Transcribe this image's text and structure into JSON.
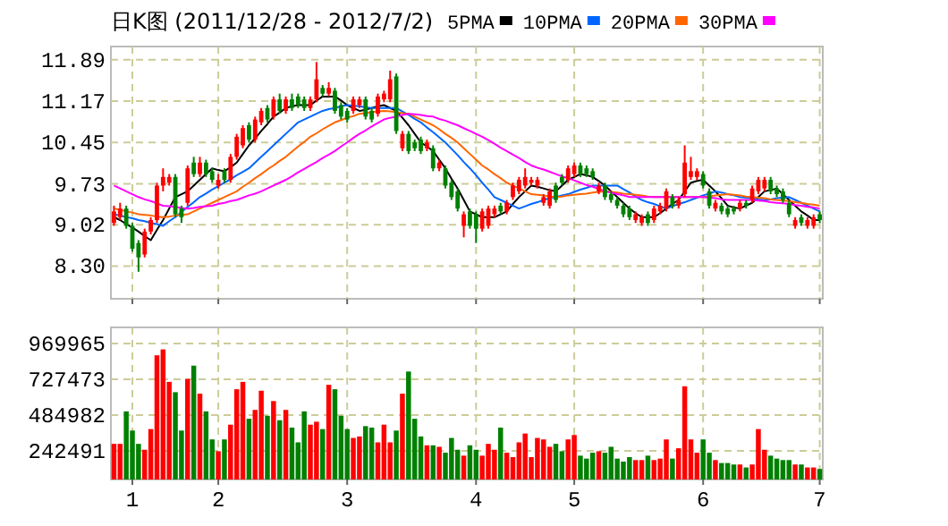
{
  "chart_data": [
    {
      "type": "candlestick",
      "title": "日K图 (2011/12/28 - 2012/7/2)",
      "categories": [
        null,
        null,
        null,
        "1",
        null,
        null,
        null,
        null,
        null,
        null,
        null,
        null,
        null,
        null,
        null,
        null,
        null,
        "2",
        null,
        null,
        null,
        null,
        null,
        null,
        null,
        null,
        null,
        null,
        null,
        null,
        null,
        null,
        null,
        null,
        null,
        null,
        null,
        null,
        "3",
        null,
        null,
        null,
        null,
        null,
        null,
        null,
        null,
        null,
        null,
        null,
        null,
        null,
        null,
        null,
        null,
        null,
        null,
        null,
        null,
        "4",
        null,
        null,
        null,
        null,
        null,
        null,
        null,
        null,
        null,
        null,
        null,
        null,
        null,
        null,
        null,
        "5",
        null,
        null,
        null,
        null,
        null,
        null,
        null,
        null,
        null,
        null,
        null,
        null,
        null,
        null,
        null,
        null,
        null,
        null,
        null,
        null,
        "6",
        null,
        null,
        null,
        null,
        null,
        null,
        null,
        null,
        null,
        null,
        null,
        null,
        null,
        null,
        null,
        null,
        null,
        null,
        "7"
      ],
      "ohlc": [
        [
          9.05,
          9.35,
          9.0,
          9.25
        ],
        [
          9.15,
          9.4,
          9.1,
          9.3
        ],
        [
          9.3,
          9.35,
          8.95,
          9.0
        ],
        [
          9.0,
          9.05,
          8.55,
          8.6
        ],
        [
          8.7,
          8.75,
          8.2,
          8.45
        ],
        [
          8.5,
          8.95,
          8.45,
          8.9
        ],
        [
          8.9,
          9.15,
          8.85,
          9.1
        ],
        [
          9.1,
          9.75,
          9.05,
          9.7
        ],
        [
          9.7,
          10.0,
          9.6,
          9.85
        ],
        [
          9.75,
          9.9,
          9.7,
          9.85
        ],
        [
          9.85,
          9.9,
          9.15,
          9.2
        ],
        [
          9.3,
          9.35,
          9.05,
          9.15
        ],
        [
          9.4,
          10.05,
          9.35,
          10.0
        ],
        [
          10.1,
          10.2,
          9.85,
          9.9
        ],
        [
          9.9,
          10.2,
          9.85,
          10.1
        ],
        [
          10.1,
          10.15,
          9.85,
          9.9
        ],
        [
          9.95,
          10.0,
          9.75,
          9.8
        ],
        [
          9.7,
          9.9,
          9.65,
          9.8
        ],
        [
          9.95,
          10.0,
          9.75,
          9.8
        ],
        [
          9.8,
          10.25,
          9.75,
          10.2
        ],
        [
          10.2,
          10.6,
          10.15,
          10.55
        ],
        [
          10.4,
          10.75,
          10.35,
          10.7
        ],
        [
          10.75,
          10.8,
          10.45,
          10.5
        ],
        [
          10.5,
          10.9,
          10.45,
          10.85
        ],
        [
          10.8,
          11.05,
          10.75,
          11.0
        ],
        [
          11.05,
          11.1,
          10.8,
          10.85
        ],
        [
          10.9,
          11.25,
          10.85,
          11.2
        ],
        [
          11.2,
          11.3,
          10.95,
          11.0
        ],
        [
          11.0,
          11.25,
          10.95,
          11.2
        ],
        [
          11.2,
          11.3,
          11.0,
          11.05
        ],
        [
          11.25,
          11.3,
          11.05,
          11.1
        ],
        [
          11.2,
          11.25,
          11.0,
          11.05
        ],
        [
          11.05,
          11.25,
          11.0,
          11.2
        ],
        [
          11.2,
          11.85,
          11.15,
          11.55
        ],
        [
          11.4,
          11.45,
          11.25,
          11.3
        ],
        [
          11.3,
          11.5,
          11.25,
          11.4
        ],
        [
          11.35,
          11.4,
          10.95,
          11.0
        ],
        [
          11.1,
          11.15,
          10.85,
          10.9
        ],
        [
          11.0,
          11.05,
          10.8,
          10.85
        ],
        [
          11.0,
          11.25,
          10.95,
          11.2
        ],
        [
          11.1,
          11.25,
          11.05,
          11.2
        ],
        [
          11.2,
          11.25,
          10.85,
          10.9
        ],
        [
          11.0,
          11.05,
          10.8,
          10.85
        ],
        [
          10.95,
          11.3,
          10.9,
          11.25
        ],
        [
          11.2,
          11.35,
          11.15,
          11.3
        ],
        [
          11.2,
          11.7,
          11.15,
          11.55
        ],
        [
          11.6,
          11.65,
          10.6,
          10.65
        ],
        [
          10.35,
          10.65,
          10.3,
          10.6
        ],
        [
          10.6,
          10.65,
          10.25,
          10.3
        ],
        [
          10.45,
          10.5,
          10.3,
          10.35
        ],
        [
          10.5,
          10.55,
          10.25,
          10.3
        ],
        [
          10.35,
          10.5,
          10.3,
          10.45
        ],
        [
          10.35,
          10.4,
          9.95,
          10.0
        ],
        [
          10.0,
          10.15,
          9.95,
          10.1
        ],
        [
          10.0,
          10.05,
          9.65,
          9.7
        ],
        [
          9.75,
          9.8,
          9.45,
          9.5
        ],
        [
          9.6,
          9.65,
          9.25,
          9.3
        ],
        [
          9.0,
          9.25,
          8.8,
          9.2
        ],
        [
          9.25,
          9.3,
          8.95,
          9.0
        ],
        [
          9.2,
          9.25,
          8.7,
          8.95
        ],
        [
          8.95,
          9.3,
          8.9,
          9.25
        ],
        [
          9.0,
          9.35,
          8.95,
          9.3
        ],
        [
          9.2,
          9.35,
          9.15,
          9.3
        ],
        [
          9.35,
          9.4,
          9.2,
          9.25
        ],
        [
          9.25,
          9.45,
          9.2,
          9.4
        ],
        [
          9.5,
          9.75,
          9.45,
          9.7
        ],
        [
          9.6,
          9.85,
          9.55,
          9.8
        ],
        [
          9.7,
          10.0,
          9.65,
          9.85
        ],
        [
          9.75,
          9.85,
          9.7,
          9.8
        ],
        [
          9.7,
          9.85,
          9.65,
          9.8
        ],
        [
          9.4,
          9.55,
          9.35,
          9.5
        ],
        [
          9.35,
          9.65,
          9.3,
          9.6
        ],
        [
          9.7,
          9.75,
          9.4,
          9.45
        ],
        [
          9.85,
          9.9,
          9.7,
          9.75
        ],
        [
          9.8,
          10.05,
          9.75,
          10.0
        ],
        [
          9.9,
          10.1,
          9.85,
          10.05
        ],
        [
          10.05,
          10.1,
          9.85,
          9.9
        ],
        [
          10.0,
          10.05,
          9.85,
          9.9
        ],
        [
          9.95,
          10.0,
          9.8,
          9.85
        ],
        [
          9.6,
          9.75,
          9.55,
          9.7
        ],
        [
          9.7,
          9.75,
          9.45,
          9.5
        ],
        [
          9.55,
          9.6,
          9.4,
          9.45
        ],
        [
          9.45,
          9.5,
          9.3,
          9.35
        ],
        [
          9.35,
          9.4,
          9.15,
          9.2
        ],
        [
          9.3,
          9.35,
          9.1,
          9.15
        ],
        [
          9.1,
          9.25,
          9.05,
          9.2
        ],
        [
          9.05,
          9.2,
          9.0,
          9.15
        ],
        [
          9.2,
          9.25,
          9.0,
          9.05
        ],
        [
          9.1,
          9.35,
          9.05,
          9.3
        ],
        [
          9.25,
          9.4,
          9.2,
          9.35
        ],
        [
          9.3,
          9.65,
          9.25,
          9.6
        ],
        [
          9.5,
          9.55,
          9.3,
          9.35
        ],
        [
          9.35,
          9.5,
          9.3,
          9.45
        ],
        [
          9.55,
          10.4,
          9.5,
          10.1
        ],
        [
          9.85,
          10.2,
          9.8,
          9.95
        ],
        [
          9.85,
          10.0,
          9.8,
          9.95
        ],
        [
          9.9,
          9.95,
          9.65,
          9.7
        ],
        [
          9.6,
          9.65,
          9.3,
          9.35
        ],
        [
          9.3,
          9.45,
          9.25,
          9.4
        ],
        [
          9.35,
          9.4,
          9.2,
          9.25
        ],
        [
          9.3,
          9.35,
          9.15,
          9.2
        ],
        [
          9.3,
          9.35,
          9.2,
          9.25
        ],
        [
          9.3,
          9.45,
          9.25,
          9.4
        ],
        [
          9.4,
          9.45,
          9.3,
          9.35
        ],
        [
          9.45,
          9.7,
          9.4,
          9.65
        ],
        [
          9.6,
          9.85,
          9.55,
          9.8
        ],
        [
          9.65,
          9.85,
          9.6,
          9.8
        ],
        [
          9.8,
          9.85,
          9.55,
          9.6
        ],
        [
          9.65,
          9.7,
          9.5,
          9.55
        ],
        [
          9.6,
          9.65,
          9.4,
          9.45
        ],
        [
          9.4,
          9.45,
          9.15,
          9.2
        ],
        [
          9.0,
          9.15,
          8.95,
          9.1
        ],
        [
          9.15,
          9.2,
          9.0,
          9.05
        ],
        [
          9.0,
          9.15,
          8.95,
          9.1
        ],
        [
          9.0,
          9.2,
          8.95,
          9.15
        ],
        [
          9.2,
          9.25,
          9.05,
          9.1
        ]
      ],
      "colors": [
        "#ff0000",
        "#ff0000",
        "#008000",
        "#008000",
        "#008000",
        "#ff0000",
        "#ff0000",
        "#ff0000",
        "#ff0000",
        "#ff0000",
        "#008000",
        "#008000",
        "#ff0000",
        "#008000",
        "#ff0000",
        "#008000",
        "#008000",
        "#ff0000",
        "#008000",
        "#ff0000",
        "#ff0000",
        "#ff0000",
        "#008000",
        "#ff0000",
        "#ff0000",
        "#008000",
        "#ff0000",
        "#008000",
        "#ff0000",
        "#008000",
        "#008000",
        "#008000",
        "#ff0000",
        "#ff0000",
        "#008000",
        "#ff0000",
        "#008000",
        "#008000",
        "#008000",
        "#ff0000",
        "#ff0000",
        "#008000",
        "#008000",
        "#ff0000",
        "#ff0000",
        "#ff0000",
        "#008000",
        "#ff0000",
        "#008000",
        "#008000",
        "#008000",
        "#ff0000",
        "#008000",
        "#ff0000",
        "#008000",
        "#008000",
        "#008000",
        "#ff0000",
        "#008000",
        "#008000",
        "#ff0000",
        "#ff0000",
        "#ff0000",
        "#008000",
        "#ff0000",
        "#ff0000",
        "#ff0000",
        "#ff0000",
        "#ff0000",
        "#ff0000",
        "#ff0000",
        "#ff0000",
        "#008000",
        "#008000",
        "#ff0000",
        "#ff0000",
        "#008000",
        "#008000",
        "#008000",
        "#ff0000",
        "#008000",
        "#008000",
        "#008000",
        "#008000",
        "#008000",
        "#ff0000",
        "#ff0000",
        "#008000",
        "#ff0000",
        "#ff0000",
        "#ff0000",
        "#008000",
        "#ff0000",
        "#ff0000",
        "#ff0000",
        "#ff0000",
        "#008000",
        "#008000",
        "#ff0000",
        "#008000",
        "#008000",
        "#008000",
        "#ff0000",
        "#008000",
        "#ff0000",
        "#ff0000",
        "#ff0000",
        "#008000",
        "#008000",
        "#008000",
        "#008000",
        "#ff0000",
        "#008000",
        "#ff0000",
        "#ff0000",
        "#008000"
      ],
      "series": [
        {
          "name": "5PMA",
          "type": "line",
          "color": "#000000",
          "values": [
            9.15,
            9.1,
            9.03,
            8.97,
            8.9,
            8.82,
            8.75,
            8.93,
            9.1,
            9.3,
            9.5,
            9.55,
            9.6,
            9.7,
            9.8,
            9.9,
            10.0,
            9.97,
            9.95,
            10.02,
            10.1,
            10.25,
            10.4,
            10.52,
            10.65,
            10.77,
            10.9,
            10.97,
            11.05,
            11.08,
            11.1,
            11.1,
            11.1,
            11.18,
            11.25,
            11.25,
            11.25,
            11.18,
            11.1,
            11.05,
            11.0,
            11.02,
            11.05,
            11.08,
            11.1,
            11.05,
            11.0,
            10.88,
            10.75,
            10.6,
            10.45,
            10.38,
            10.3,
            10.15,
            10.0,
            9.82,
            9.65,
            9.45,
            9.25,
            9.2,
            9.15,
            9.15,
            9.15,
            9.2,
            9.25,
            9.38,
            9.5,
            9.6,
            9.7,
            9.68,
            9.65,
            9.62,
            9.6,
            9.7,
            9.8,
            9.85,
            9.9,
            9.88,
            9.85,
            9.78,
            9.7,
            9.6,
            9.5,
            9.4,
            9.3,
            9.22,
            9.15,
            9.15,
            9.15,
            9.22,
            9.3,
            9.38,
            9.45,
            9.6,
            9.75,
            9.78,
            9.8,
            9.7,
            9.6,
            9.48,
            9.35,
            9.32,
            9.3,
            9.35,
            9.4,
            9.5,
            9.6,
            9.62,
            9.65,
            9.55,
            9.45,
            9.35,
            9.25,
            9.18,
            9.1,
            9.1
          ]
        },
        {
          "name": "10PMA",
          "type": "line",
          "color": "#0066ff",
          "values": [
            9.2,
            9.18,
            9.15,
            9.13,
            9.1,
            9.08,
            9.05,
            9.03,
            9.0,
            9.08,
            9.15,
            9.24,
            9.33,
            9.41,
            9.5,
            9.56,
            9.63,
            9.69,
            9.75,
            9.81,
            9.88,
            9.94,
            10.0,
            10.1,
            10.2,
            10.3,
            10.4,
            10.5,
            10.6,
            10.7,
            10.8,
            10.85,
            10.9,
            10.95,
            11.0,
            11.03,
            11.05,
            11.08,
            11.1,
            11.09,
            11.08,
            11.06,
            11.05,
            11.05,
            11.05,
            11.05,
            11.05,
            10.99,
            10.93,
            10.86,
            10.8,
            10.71,
            10.63,
            10.54,
            10.45,
            10.34,
            10.23,
            10.11,
            10.0,
            9.88,
            9.75,
            9.63,
            9.5,
            9.45,
            9.4,
            9.35,
            9.3,
            9.34,
            9.38,
            9.41,
            9.45,
            9.48,
            9.5,
            9.53,
            9.55,
            9.59,
            9.63,
            9.66,
            9.7,
            9.7,
            9.7,
            9.7,
            9.7,
            9.64,
            9.58,
            9.51,
            9.45,
            9.41,
            9.38,
            9.34,
            9.3,
            9.34,
            9.38,
            9.41,
            9.45,
            9.49,
            9.53,
            9.56,
            9.6,
            9.58,
            9.55,
            9.53,
            9.5,
            9.49,
            9.48,
            9.46,
            9.45,
            9.46,
            9.48,
            9.49,
            9.5,
            9.45,
            9.4,
            9.35,
            9.3,
            9.25
          ]
        },
        {
          "name": "20PMA",
          "type": "line",
          "color": "#ff6600",
          "values": [
            9.3,
            9.28,
            9.25,
            9.23,
            9.2,
            9.19,
            9.18,
            9.16,
            9.15,
            9.16,
            9.18,
            9.19,
            9.2,
            9.25,
            9.3,
            9.35,
            9.4,
            9.45,
            9.5,
            9.55,
            9.6,
            9.68,
            9.75,
            9.83,
            9.9,
            9.98,
            10.05,
            10.13,
            10.2,
            10.29,
            10.38,
            10.46,
            10.55,
            10.61,
            10.68,
            10.74,
            10.8,
            10.84,
            10.88,
            10.91,
            10.95,
            10.96,
            10.98,
            10.99,
            11.0,
            10.99,
            10.98,
            10.96,
            10.95,
            10.9,
            10.85,
            10.8,
            10.75,
            10.68,
            10.6,
            10.53,
            10.45,
            10.35,
            10.25,
            10.15,
            10.05,
            9.98,
            9.9,
            9.83,
            9.75,
            9.7,
            9.65,
            9.6,
            9.55,
            9.54,
            9.53,
            9.51,
            9.5,
            9.51,
            9.53,
            9.54,
            9.55,
            9.56,
            9.58,
            9.59,
            9.6,
            9.59,
            9.58,
            9.56,
            9.55,
            9.54,
            9.53,
            9.51,
            9.5,
            9.5,
            9.5,
            9.5,
            9.5,
            9.5,
            9.5,
            9.5,
            9.5,
            9.51,
            9.53,
            9.54,
            9.55,
            9.54,
            9.53,
            9.51,
            9.5,
            9.49,
            9.48,
            9.46,
            9.45,
            9.44,
            9.43,
            9.41,
            9.4,
            9.38,
            9.37,
            9.35
          ]
        },
        {
          "name": "30PMA",
          "type": "line",
          "color": "#ff00ff",
          "values": [
            9.7,
            9.65,
            9.6,
            9.55,
            9.5,
            9.46,
            9.43,
            9.39,
            9.35,
            9.34,
            9.33,
            9.31,
            9.3,
            9.31,
            9.33,
            9.34,
            9.35,
            9.38,
            9.4,
            9.43,
            9.45,
            9.49,
            9.53,
            9.56,
            9.6,
            9.65,
            9.7,
            9.75,
            9.8,
            9.86,
            9.93,
            9.99,
            10.05,
            10.11,
            10.18,
            10.24,
            10.3,
            10.38,
            10.45,
            10.53,
            10.6,
            10.66,
            10.73,
            10.79,
            10.85,
            10.88,
            10.9,
            10.93,
            10.95,
            10.94,
            10.93,
            10.91,
            10.9,
            10.86,
            10.83,
            10.79,
            10.75,
            10.7,
            10.65,
            10.6,
            10.55,
            10.49,
            10.43,
            10.36,
            10.3,
            10.24,
            10.18,
            10.11,
            10.05,
            10.01,
            9.98,
            9.94,
            9.9,
            9.86,
            9.83,
            9.79,
            9.75,
            9.71,
            9.68,
            9.64,
            9.6,
            9.58,
            9.55,
            9.53,
            9.5,
            9.5,
            9.5,
            9.5,
            9.5,
            9.5,
            9.5,
            9.5,
            9.5,
            9.5,
            9.5,
            9.5,
            9.5,
            9.49,
            9.48,
            9.46,
            9.45,
            9.45,
            9.45,
            9.45,
            9.45,
            9.44,
            9.43,
            9.41,
            9.4,
            9.39,
            9.38,
            9.36,
            9.35,
            9.33,
            9.32,
            9.3
          ]
        }
      ],
      "ylim": [
        7.73,
        12.12
      ],
      "yticks": [
        {
          "value": 8.3,
          "label": "8.30"
        },
        9.02,
        9.73,
        10.45,
        11.17,
        11.89
      ],
      "tick_labels": "y",
      "grid": true,
      "legend": "top"
    },
    {
      "type": "bar",
      "categories": [
        null,
        null,
        null,
        "1",
        null,
        null,
        null,
        null,
        null,
        null,
        null,
        null,
        null,
        null,
        null,
        null,
        null,
        "2",
        null,
        null,
        null,
        null,
        null,
        null,
        null,
        null,
        null,
        null,
        null,
        null,
        null,
        null,
        null,
        null,
        null,
        null,
        null,
        null,
        "3",
        null,
        null,
        null,
        null,
        null,
        null,
        null,
        null,
        null,
        null,
        null,
        null,
        null,
        null,
        null,
        null,
        null,
        null,
        null,
        null,
        "4",
        null,
        null,
        null,
        null,
        null,
        null,
        null,
        null,
        null,
        null,
        null,
        null,
        null,
        null,
        null,
        "5",
        null,
        null,
        null,
        null,
        null,
        null,
        null,
        null,
        null,
        null,
        null,
        null,
        null,
        null,
        null,
        null,
        null,
        null,
        null,
        null,
        "6",
        null,
        null,
        null,
        null,
        null,
        null,
        null,
        null,
        null,
        null,
        null,
        null,
        null,
        null,
        null,
        null,
        null,
        null,
        "7"
      ],
      "values": [
        290000,
        290000,
        510000,
        380000,
        290000,
        250000,
        390000,
        890000,
        930000,
        710000,
        640000,
        380000,
        730000,
        820000,
        630000,
        510000,
        320000,
        240000,
        320000,
        420000,
        660000,
        710000,
        460000,
        520000,
        650000,
        480000,
        580000,
        450000,
        520000,
        400000,
        300000,
        510000,
        420000,
        440000,
        390000,
        690000,
        660000,
        480000,
        390000,
        330000,
        340000,
        410000,
        400000,
        300000,
        420000,
        300000,
        380000,
        630000,
        780000,
        460000,
        340000,
        280000,
        280000,
        270000,
        230000,
        330000,
        250000,
        210000,
        280000,
        250000,
        210000,
        290000,
        250000,
        400000,
        230000,
        200000,
        300000,
        360000,
        200000,
        330000,
        320000,
        270000,
        290000,
        240000,
        320000,
        350000,
        210000,
        190000,
        230000,
        240000,
        230000,
        270000,
        190000,
        170000,
        200000,
        180000,
        180000,
        210000,
        180000,
        190000,
        320000,
        190000,
        260000,
        680000,
        320000,
        230000,
        320000,
        230000,
        180000,
        160000,
        160000,
        150000,
        150000,
        130000,
        150000,
        390000,
        250000,
        210000,
        190000,
        180000,
        180000,
        150000,
        150000,
        130000,
        130000,
        120000
      ],
      "colors": [
        "#ff0000",
        "#ff0000",
        "#008000",
        "#008000",
        "#008000",
        "#ff0000",
        "#ff0000",
        "#ff0000",
        "#ff0000",
        "#ff0000",
        "#008000",
        "#008000",
        "#ff0000",
        "#008000",
        "#ff0000",
        "#008000",
        "#008000",
        "#ff0000",
        "#008000",
        "#ff0000",
        "#ff0000",
        "#ff0000",
        "#008000",
        "#ff0000",
        "#ff0000",
        "#008000",
        "#ff0000",
        "#008000",
        "#ff0000",
        "#008000",
        "#008000",
        "#008000",
        "#ff0000",
        "#ff0000",
        "#008000",
        "#ff0000",
        "#008000",
        "#008000",
        "#008000",
        "#ff0000",
        "#ff0000",
        "#008000",
        "#008000",
        "#ff0000",
        "#ff0000",
        "#ff0000",
        "#008000",
        "#ff0000",
        "#008000",
        "#008000",
        "#008000",
        "#ff0000",
        "#008000",
        "#ff0000",
        "#008000",
        "#008000",
        "#008000",
        "#ff0000",
        "#008000",
        "#008000",
        "#ff0000",
        "#ff0000",
        "#ff0000",
        "#008000",
        "#ff0000",
        "#ff0000",
        "#ff0000",
        "#ff0000",
        "#ff0000",
        "#ff0000",
        "#ff0000",
        "#ff0000",
        "#008000",
        "#008000",
        "#ff0000",
        "#ff0000",
        "#008000",
        "#008000",
        "#008000",
        "#ff0000",
        "#008000",
        "#008000",
        "#008000",
        "#008000",
        "#008000",
        "#ff0000",
        "#ff0000",
        "#008000",
        "#ff0000",
        "#ff0000",
        "#ff0000",
        "#008000",
        "#ff0000",
        "#ff0000",
        "#ff0000",
        "#ff0000",
        "#008000",
        "#008000",
        "#ff0000",
        "#008000",
        "#008000",
        "#008000",
        "#ff0000",
        "#008000",
        "#ff0000",
        "#ff0000",
        "#ff0000",
        "#008000",
        "#008000",
        "#008000",
        "#008000",
        "#ff0000",
        "#008000",
        "#ff0000",
        "#ff0000",
        "#008000"
      ],
      "ylim": [
        48500,
        1079000
      ],
      "yticks": [
        242491,
        484982,
        727473,
        969965
      ],
      "grid": true
    }
  ]
}
